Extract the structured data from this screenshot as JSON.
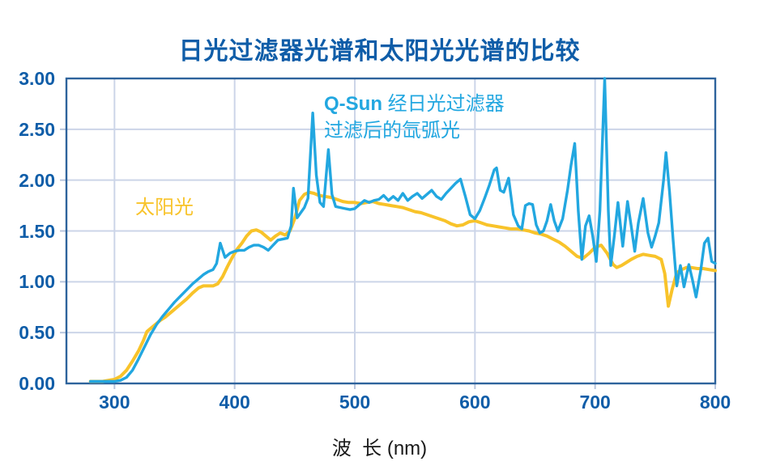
{
  "title": "日光过滤器光谱和太阳光光谱的比较",
  "x_axis_title": "波  长 (nm)",
  "annotations": {
    "sun_label": "太阳光",
    "qsun_bold": "Q-Sun",
    "qsun_line1_rest": " 经日光过滤器",
    "qsun_line2": "过滤后的氙弧光"
  },
  "colors": {
    "title_text": "#0f5da8",
    "tick_label": "#0f5da8",
    "frame": "#2e639c",
    "grid": "#ccd5e8",
    "tick_mark": "#b9c6dd",
    "x_axis_title_text": "#1a1a1a",
    "sun_line": "#f8c32a",
    "qsun_line": "#22a7e0"
  },
  "chart_data": {
    "type": "line",
    "title": "日光过滤器光谱和太阳光光谱的比较",
    "xlabel": "波长 (nm)",
    "ylabel": "",
    "grid": true,
    "x_range": [
      260,
      800
    ],
    "y_range": [
      0,
      3
    ],
    "x_ticks": [
      {
        "v": 300,
        "label": "300"
      },
      {
        "v": 400,
        "label": "400"
      },
      {
        "v": 500,
        "label": "500"
      },
      {
        "v": 600,
        "label": "600"
      },
      {
        "v": 700,
        "label": "700"
      },
      {
        "v": 800,
        "label": "800"
      }
    ],
    "y_ticks": [
      {
        "v": 0.0,
        "label": "0.00"
      },
      {
        "v": 0.5,
        "label": "0.50"
      },
      {
        "v": 1.0,
        "label": "1.00"
      },
      {
        "v": 1.5,
        "label": "1.50"
      },
      {
        "v": 2.0,
        "label": "2.00"
      },
      {
        "v": 2.5,
        "label": "2.50"
      },
      {
        "v": 3.0,
        "label": "3.00"
      }
    ],
    "series": [
      {
        "name": "太阳光 (sunlight)",
        "color_key": "sun_line",
        "width": 4,
        "points": [
          [
            280,
            0.02
          ],
          [
            285,
            0.02
          ],
          [
            290,
            0.02
          ],
          [
            295,
            0.03
          ],
          [
            300,
            0.04
          ],
          [
            305,
            0.07
          ],
          [
            310,
            0.13
          ],
          [
            315,
            0.22
          ],
          [
            320,
            0.32
          ],
          [
            324,
            0.42
          ],
          [
            327,
            0.51
          ],
          [
            330,
            0.54
          ],
          [
            334,
            0.58
          ],
          [
            338,
            0.62
          ],
          [
            342,
            0.65
          ],
          [
            346,
            0.69
          ],
          [
            350,
            0.73
          ],
          [
            355,
            0.78
          ],
          [
            360,
            0.83
          ],
          [
            365,
            0.89
          ],
          [
            370,
            0.94
          ],
          [
            374,
            0.96
          ],
          [
            378,
            0.96
          ],
          [
            382,
            0.96
          ],
          [
            386,
            0.98
          ],
          [
            390,
            1.05
          ],
          [
            394,
            1.15
          ],
          [
            398,
            1.24
          ],
          [
            402,
            1.32
          ],
          [
            406,
            1.38
          ],
          [
            410,
            1.45
          ],
          [
            414,
            1.5
          ],
          [
            418,
            1.51
          ],
          [
            422,
            1.49
          ],
          [
            426,
            1.45
          ],
          [
            430,
            1.41
          ],
          [
            434,
            1.45
          ],
          [
            438,
            1.48
          ],
          [
            442,
            1.46
          ],
          [
            446,
            1.5
          ],
          [
            450,
            1.62
          ],
          [
            454,
            1.8
          ],
          [
            458,
            1.86
          ],
          [
            462,
            1.88
          ],
          [
            466,
            1.87
          ],
          [
            470,
            1.85
          ],
          [
            475,
            1.84
          ],
          [
            480,
            1.83
          ],
          [
            485,
            1.81
          ],
          [
            490,
            1.79
          ],
          [
            495,
            1.78
          ],
          [
            500,
            1.78
          ],
          [
            505,
            1.77
          ],
          [
            510,
            1.78
          ],
          [
            515,
            1.79
          ],
          [
            520,
            1.77
          ],
          [
            525,
            1.76
          ],
          [
            530,
            1.75
          ],
          [
            535,
            1.74
          ],
          [
            540,
            1.73
          ],
          [
            545,
            1.71
          ],
          [
            550,
            1.69
          ],
          [
            555,
            1.68
          ],
          [
            560,
            1.66
          ],
          [
            565,
            1.64
          ],
          [
            570,
            1.62
          ],
          [
            575,
            1.6
          ],
          [
            580,
            1.57
          ],
          [
            585,
            1.55
          ],
          [
            590,
            1.56
          ],
          [
            595,
            1.59
          ],
          [
            600,
            1.6
          ],
          [
            605,
            1.58
          ],
          [
            610,
            1.56
          ],
          [
            615,
            1.55
          ],
          [
            620,
            1.54
          ],
          [
            625,
            1.53
          ],
          [
            630,
            1.52
          ],
          [
            635,
            1.52
          ],
          [
            640,
            1.51
          ],
          [
            645,
            1.5
          ],
          [
            650,
            1.48
          ],
          [
            655,
            1.47
          ],
          [
            660,
            1.45
          ],
          [
            665,
            1.42
          ],
          [
            670,
            1.39
          ],
          [
            675,
            1.35
          ],
          [
            680,
            1.3
          ],
          [
            685,
            1.25
          ],
          [
            690,
            1.23
          ],
          [
            695,
            1.28
          ],
          [
            700,
            1.34
          ],
          [
            705,
            1.36
          ],
          [
            710,
            1.28
          ],
          [
            715,
            1.17
          ],
          [
            718,
            1.14
          ],
          [
            722,
            1.16
          ],
          [
            726,
            1.19
          ],
          [
            730,
            1.22
          ],
          [
            735,
            1.25
          ],
          [
            740,
            1.27
          ],
          [
            745,
            1.26
          ],
          [
            750,
            1.25
          ],
          [
            755,
            1.22
          ],
          [
            758,
            1.08
          ],
          [
            761,
            0.76
          ],
          [
            764,
            0.92
          ],
          [
            768,
            1.09
          ],
          [
            772,
            1.12
          ],
          [
            776,
            1.14
          ],
          [
            780,
            1.14
          ],
          [
            785,
            1.13
          ],
          [
            790,
            1.13
          ],
          [
            795,
            1.12
          ],
          [
            800,
            1.11
          ]
        ]
      },
      {
        "name": "Q-Sun 经日光过滤器过滤后的氙弧光 (xenon arc through daylight filter)",
        "color_key": "qsun_line",
        "width": 3.4,
        "points": [
          [
            280,
            0.02
          ],
          [
            285,
            0.02
          ],
          [
            290,
            0.02
          ],
          [
            295,
            0.02
          ],
          [
            300,
            0.02
          ],
          [
            305,
            0.03
          ],
          [
            310,
            0.06
          ],
          [
            315,
            0.13
          ],
          [
            320,
            0.24
          ],
          [
            325,
            0.36
          ],
          [
            330,
            0.48
          ],
          [
            335,
            0.58
          ],
          [
            340,
            0.66
          ],
          [
            345,
            0.73
          ],
          [
            350,
            0.8
          ],
          [
            355,
            0.86
          ],
          [
            360,
            0.92
          ],
          [
            365,
            0.98
          ],
          [
            370,
            1.03
          ],
          [
            374,
            1.07
          ],
          [
            378,
            1.1
          ],
          [
            382,
            1.12
          ],
          [
            385,
            1.18
          ],
          [
            388,
            1.38
          ],
          [
            392,
            1.24
          ],
          [
            396,
            1.28
          ],
          [
            400,
            1.3
          ],
          [
            404,
            1.31
          ],
          [
            408,
            1.31
          ],
          [
            412,
            1.34
          ],
          [
            416,
            1.36
          ],
          [
            420,
            1.36
          ],
          [
            424,
            1.34
          ],
          [
            428,
            1.31
          ],
          [
            432,
            1.36
          ],
          [
            436,
            1.41
          ],
          [
            440,
            1.42
          ],
          [
            444,
            1.43
          ],
          [
            447,
            1.55
          ],
          [
            449,
            1.92
          ],
          [
            452,
            1.63
          ],
          [
            455,
            1.68
          ],
          [
            458,
            1.73
          ],
          [
            461,
            1.82
          ],
          [
            465,
            2.66
          ],
          [
            468,
            2.05
          ],
          [
            471,
            1.78
          ],
          [
            474,
            1.74
          ],
          [
            478,
            2.3
          ],
          [
            481,
            1.86
          ],
          [
            484,
            1.74
          ],
          [
            488,
            1.73
          ],
          [
            492,
            1.72
          ],
          [
            496,
            1.71
          ],
          [
            500,
            1.72
          ],
          [
            504,
            1.76
          ],
          [
            508,
            1.8
          ],
          [
            512,
            1.78
          ],
          [
            516,
            1.8
          ],
          [
            520,
            1.81
          ],
          [
            524,
            1.85
          ],
          [
            528,
            1.8
          ],
          [
            532,
            1.84
          ],
          [
            536,
            1.8
          ],
          [
            540,
            1.87
          ],
          [
            544,
            1.8
          ],
          [
            548,
            1.84
          ],
          [
            552,
            1.87
          ],
          [
            556,
            1.82
          ],
          [
            560,
            1.86
          ],
          [
            564,
            1.9
          ],
          [
            568,
            1.84
          ],
          [
            572,
            1.81
          ],
          [
            576,
            1.87
          ],
          [
            580,
            1.92
          ],
          [
            584,
            1.97
          ],
          [
            588,
            2.01
          ],
          [
            592,
            1.84
          ],
          [
            596,
            1.66
          ],
          [
            600,
            1.62
          ],
          [
            604,
            1.7
          ],
          [
            608,
            1.82
          ],
          [
            612,
            1.95
          ],
          [
            616,
            2.1
          ],
          [
            618,
            2.12
          ],
          [
            621,
            1.9
          ],
          [
            624,
            1.88
          ],
          [
            628,
            2.02
          ],
          [
            632,
            1.66
          ],
          [
            636,
            1.55
          ],
          [
            639,
            1.52
          ],
          [
            642,
            1.75
          ],
          [
            645,
            1.77
          ],
          [
            648,
            1.76
          ],
          [
            651,
            1.56
          ],
          [
            654,
            1.48
          ],
          [
            657,
            1.5
          ],
          [
            660,
            1.6
          ],
          [
            663,
            1.76
          ],
          [
            666,
            1.6
          ],
          [
            669,
            1.5
          ],
          [
            673,
            1.62
          ],
          [
            677,
            1.9
          ],
          [
            680,
            2.15
          ],
          [
            683,
            2.36
          ],
          [
            686,
            1.7
          ],
          [
            689,
            1.22
          ],
          [
            692,
            1.55
          ],
          [
            695,
            1.65
          ],
          [
            698,
            1.45
          ],
          [
            701,
            1.2
          ],
          [
            704,
            1.7
          ],
          [
            708,
            3.0
          ],
          [
            711,
            1.7
          ],
          [
            713,
            1.16
          ],
          [
            716,
            1.45
          ],
          [
            719,
            1.78
          ],
          [
            723,
            1.35
          ],
          [
            727,
            1.79
          ],
          [
            730,
            1.55
          ],
          [
            733,
            1.3
          ],
          [
            736,
            1.58
          ],
          [
            740,
            1.82
          ],
          [
            744,
            1.48
          ],
          [
            747,
            1.34
          ],
          [
            750,
            1.45
          ],
          [
            753,
            1.58
          ],
          [
            757,
            2.0
          ],
          [
            759,
            2.27
          ],
          [
            762,
            1.88
          ],
          [
            765,
            1.4
          ],
          [
            768,
            0.96
          ],
          [
            771,
            1.16
          ],
          [
            774,
            0.95
          ],
          [
            778,
            1.17
          ],
          [
            781,
            1.02
          ],
          [
            784,
            0.85
          ],
          [
            788,
            1.12
          ],
          [
            791,
            1.38
          ],
          [
            794,
            1.43
          ],
          [
            797,
            1.2
          ],
          [
            800,
            1.18
          ]
        ]
      }
    ]
  }
}
